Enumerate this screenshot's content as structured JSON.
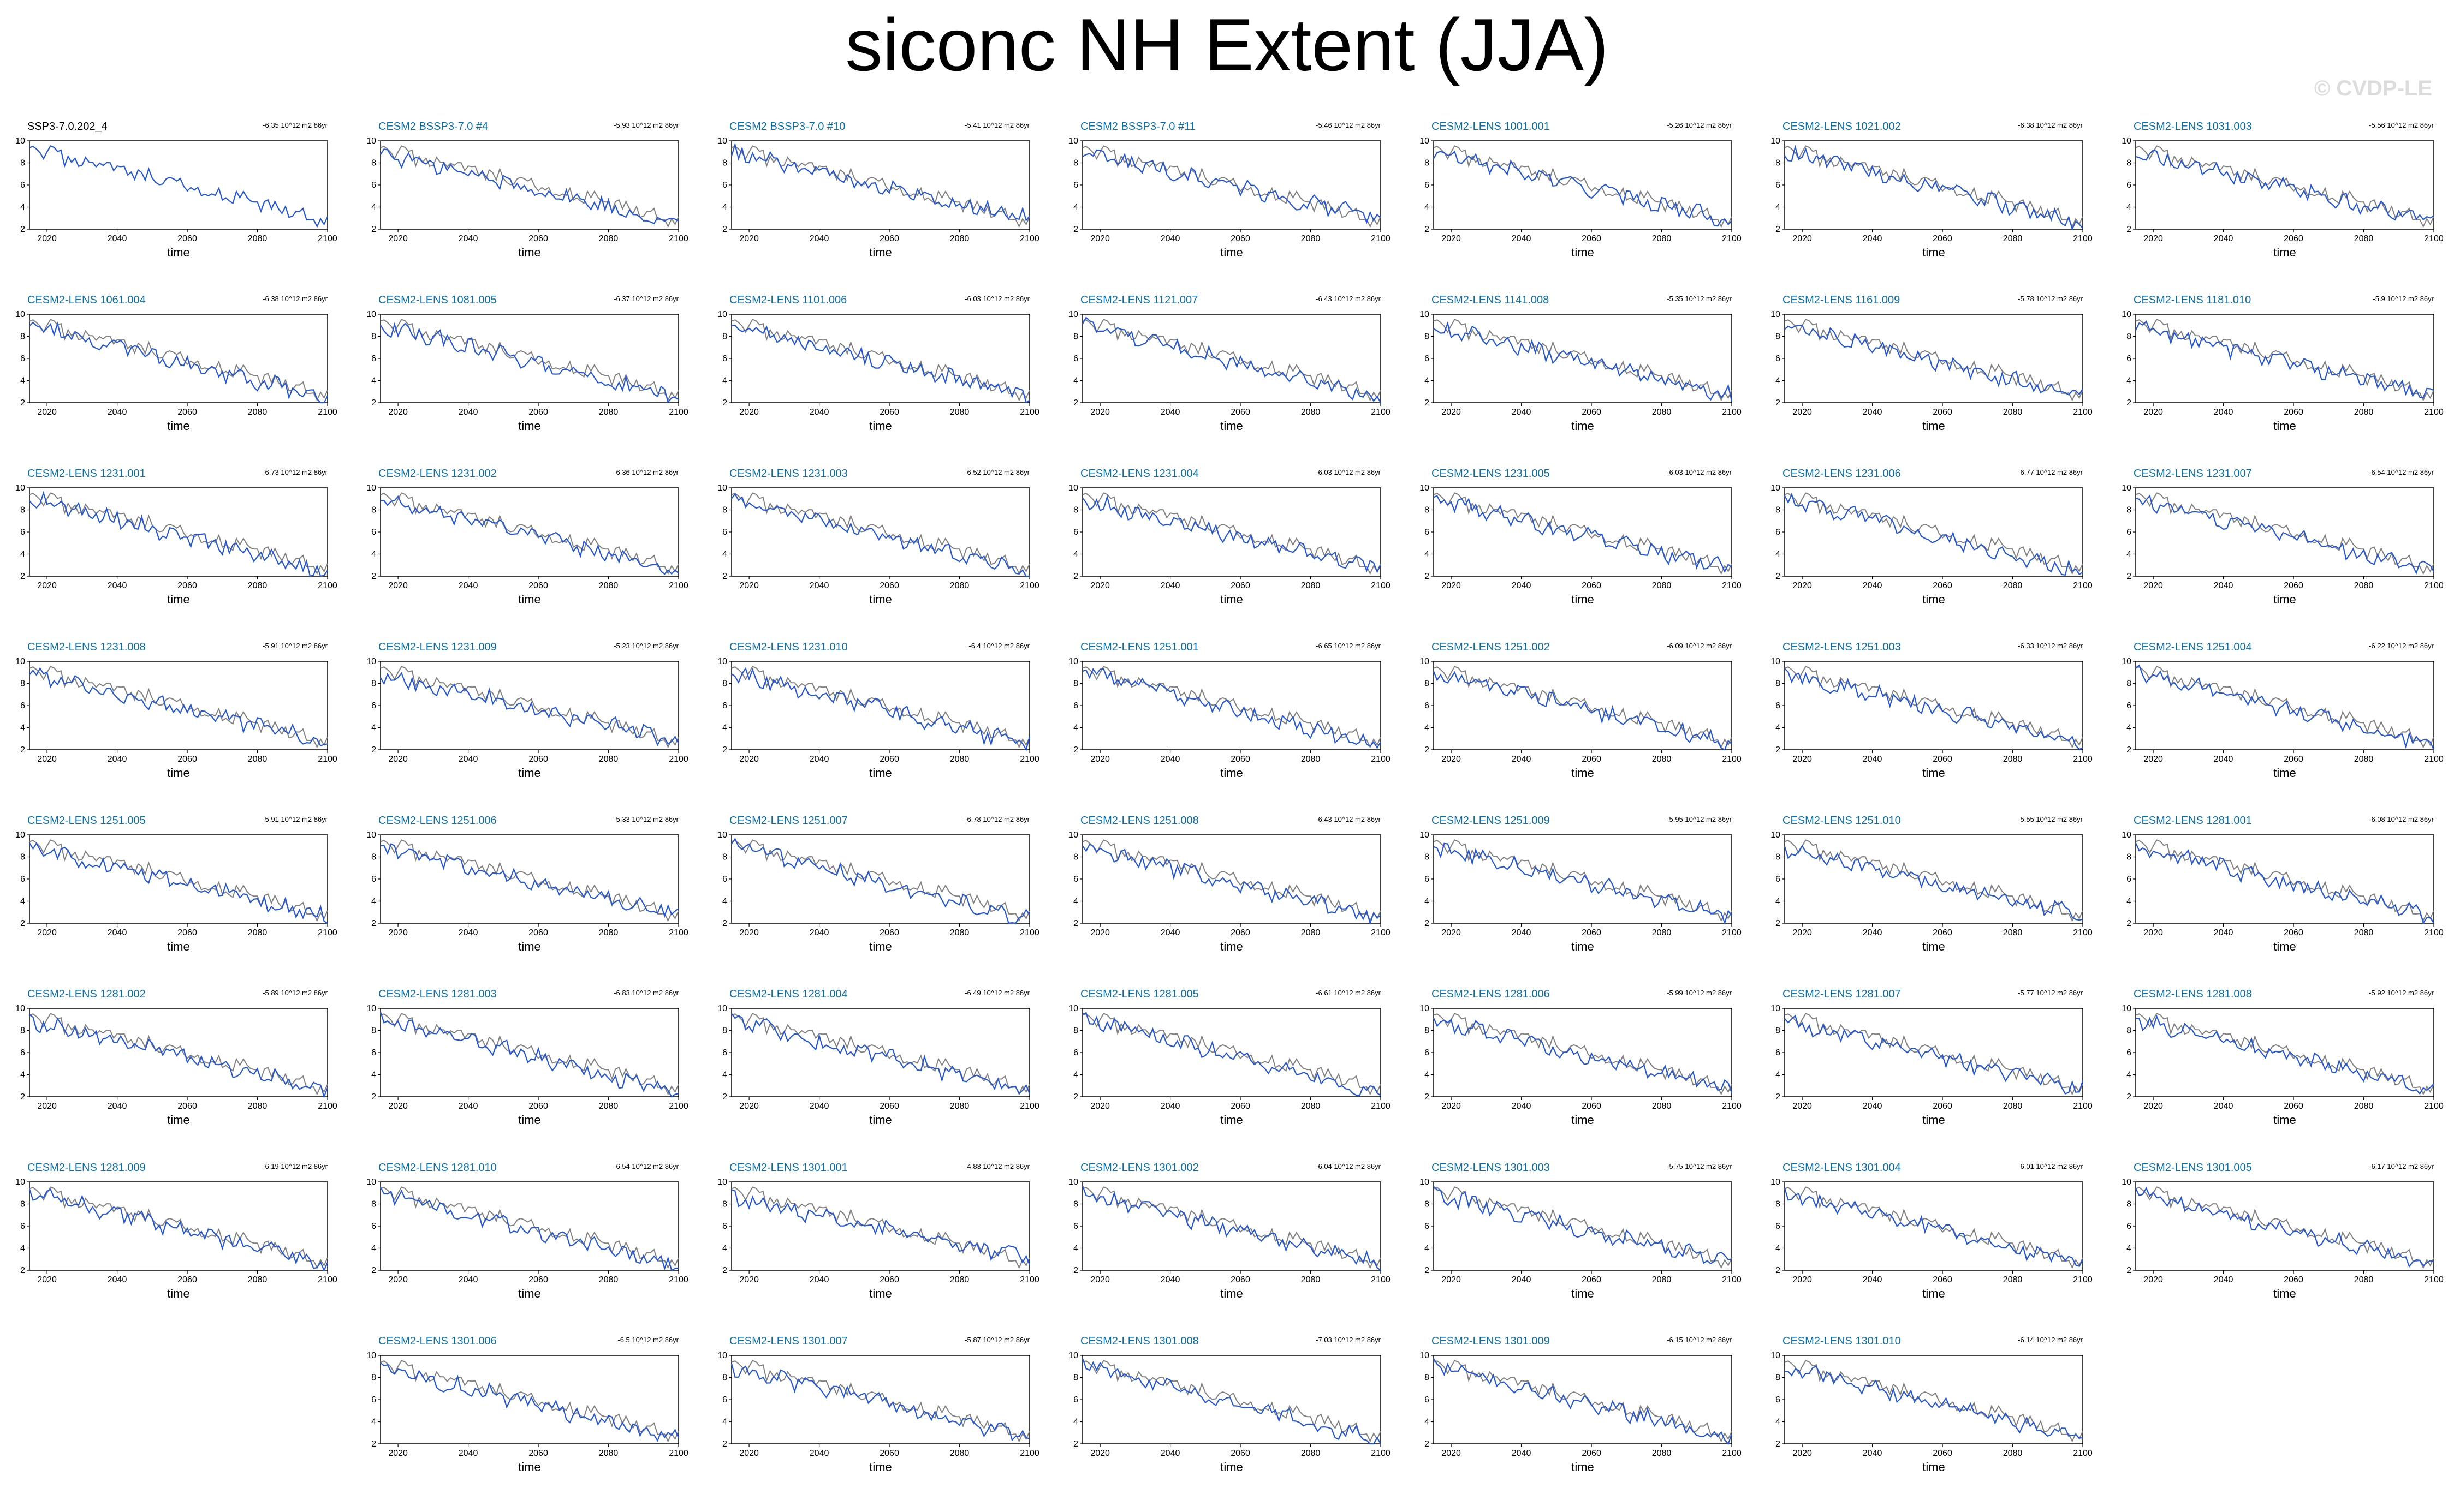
{
  "title": "siconc NH Extent (JJA)",
  "watermark": "© CVDP-LE",
  "colors": {
    "obs": "#000000",
    "panel_title": "#0a6fa8",
    "model": "#2455d6",
    "observed": "#808080"
  },
  "chart_data": {
    "type": "line",
    "xlabel": "time",
    "xlim": [
      2015,
      2100
    ],
    "ylim": [
      2,
      10
    ],
    "xticks": [
      2020,
      2040,
      2060,
      2080,
      2100
    ],
    "yticks": [
      2,
      4,
      6,
      8,
      10
    ],
    "trend_unit": "10^12 m2 86yr",
    "panels": [
      {
        "name": "SSP3-7.0.202_4",
        "trend": "-6.35",
        "start": 9.2,
        "end": 2.7,
        "obs": true
      },
      {
        "name": "CESM2 BSSP3-7.0 #4",
        "trend": "-5.93",
        "start": 8.9,
        "end": 2.5
      },
      {
        "name": "CESM2 BSSP3-7.0 #10",
        "trend": "-5.41",
        "start": 8.9,
        "end": 3.0
      },
      {
        "name": "CESM2 BSSP3-7.0 #11",
        "trend": "-5.46",
        "start": 9.0,
        "end": 2.9
      },
      {
        "name": "CESM2-LENS 1001.001",
        "trend": "-5.26",
        "start": 8.9,
        "end": 2.8
      },
      {
        "name": "CESM2-LENS 1021.002",
        "trend": "-6.38",
        "start": 9.1,
        "end": 2.4
      },
      {
        "name": "CESM2-LENS 1031.003",
        "trend": "-5.56",
        "start": 8.9,
        "end": 2.6
      },
      {
        "name": "CESM2-LENS 1061.004",
        "trend": "-6.38",
        "start": 9.1,
        "end": 2.4
      },
      {
        "name": "CESM2-LENS 1081.005",
        "trend": "-6.37",
        "start": 9.0,
        "end": 2.4
      },
      {
        "name": "CESM2-LENS 1101.006",
        "trend": "-6.03",
        "start": 8.9,
        "end": 2.6
      },
      {
        "name": "CESM2-LENS 1121.007",
        "trend": "-6.43",
        "start": 9.1,
        "end": 2.4
      },
      {
        "name": "CESM2-LENS 1141.008",
        "trend": "-5.35",
        "start": 8.8,
        "end": 2.7
      },
      {
        "name": "CESM2-LENS 1161.009",
        "trend": "-5.78",
        "start": 8.9,
        "end": 2.6
      },
      {
        "name": "CESM2-LENS 1181.010",
        "trend": "-5.9",
        "start": 8.9,
        "end": 2.6
      },
      {
        "name": "CESM2-LENS 1231.001",
        "trend": "-6.73",
        "start": 9.1,
        "end": 2.3
      },
      {
        "name": "CESM2-LENS 1231.002",
        "trend": "-6.36",
        "start": 9.0,
        "end": 2.4
      },
      {
        "name": "CESM2-LENS 1231.003",
        "trend": "-6.52",
        "start": 9.0,
        "end": 2.4
      },
      {
        "name": "CESM2-LENS 1231.004",
        "trend": "-6.03",
        "start": 8.9,
        "end": 2.6
      },
      {
        "name": "CESM2-LENS 1231.005",
        "trend": "-6.03",
        "start": 8.9,
        "end": 2.6
      },
      {
        "name": "CESM2-LENS 1231.006",
        "trend": "-6.77",
        "start": 9.1,
        "end": 2.3
      },
      {
        "name": "CESM2-LENS 1231.007",
        "trend": "-6.54",
        "start": 9.0,
        "end": 2.4
      },
      {
        "name": "CESM2-LENS 1231.008",
        "trend": "-5.91",
        "start": 8.9,
        "end": 2.6
      },
      {
        "name": "CESM2-LENS 1231.009",
        "trend": "-5.23",
        "start": 8.7,
        "end": 2.8
      },
      {
        "name": "CESM2-LENS 1231.010",
        "trend": "-6.4",
        "start": 9.0,
        "end": 2.4
      },
      {
        "name": "CESM2-LENS 1251.001",
        "trend": "-6.65",
        "start": 9.1,
        "end": 2.3
      },
      {
        "name": "CESM2-LENS 1251.002",
        "trend": "-6.09",
        "start": 8.9,
        "end": 2.5
      },
      {
        "name": "CESM2-LENS 1251.003",
        "trend": "-6.33",
        "start": 9.0,
        "end": 2.5
      },
      {
        "name": "CESM2-LENS 1251.004",
        "trend": "-6.22",
        "start": 9.0,
        "end": 2.5
      },
      {
        "name": "CESM2-LENS 1251.005",
        "trend": "-5.91",
        "start": 8.9,
        "end": 2.6
      },
      {
        "name": "CESM2-LENS 1251.006",
        "trend": "-5.33",
        "start": 8.8,
        "end": 2.8
      },
      {
        "name": "CESM2-LENS 1251.007",
        "trend": "-6.78",
        "start": 9.1,
        "end": 2.3
      },
      {
        "name": "CESM2-LENS 1251.008",
        "trend": "-6.43",
        "start": 9.0,
        "end": 2.4
      },
      {
        "name": "CESM2-LENS 1251.009",
        "trend": "-5.95",
        "start": 8.9,
        "end": 2.6
      },
      {
        "name": "CESM2-LENS 1251.010",
        "trend": "-5.55",
        "start": 8.8,
        "end": 2.7
      },
      {
        "name": "CESM2-LENS 1281.001",
        "trend": "-6.08",
        "start": 8.9,
        "end": 2.5
      },
      {
        "name": "CESM2-LENS 1281.002",
        "trend": "-5.89",
        "start": 8.9,
        "end": 2.6
      },
      {
        "name": "CESM2-LENS 1281.003",
        "trend": "-6.83",
        "start": 9.1,
        "end": 2.3
      },
      {
        "name": "CESM2-LENS 1281.004",
        "trend": "-6.49",
        "start": 9.0,
        "end": 2.4
      },
      {
        "name": "CESM2-LENS 1281.005",
        "trend": "-6.61",
        "start": 9.1,
        "end": 2.3
      },
      {
        "name": "CESM2-LENS 1281.006",
        "trend": "-5.99",
        "start": 8.9,
        "end": 2.6
      },
      {
        "name": "CESM2-LENS 1281.007",
        "trend": "-5.77",
        "start": 8.9,
        "end": 2.6
      },
      {
        "name": "CESM2-LENS 1281.008",
        "trend": "-5.92",
        "start": 8.9,
        "end": 2.6
      },
      {
        "name": "CESM2-LENS 1281.009",
        "trend": "-6.19",
        "start": 9.0,
        "end": 2.5
      },
      {
        "name": "CESM2-LENS 1281.010",
        "trend": "-6.54",
        "start": 9.0,
        "end": 2.4
      },
      {
        "name": "CESM2-LENS 1301.001",
        "trend": "-4.83",
        "start": 8.6,
        "end": 3.0
      },
      {
        "name": "CESM2-LENS 1301.002",
        "trend": "-6.04",
        "start": 8.9,
        "end": 2.6
      },
      {
        "name": "CESM2-LENS 1301.003",
        "trend": "-5.75",
        "start": 8.9,
        "end": 2.6
      },
      {
        "name": "CESM2-LENS 1301.004",
        "trend": "-6.01",
        "start": 8.9,
        "end": 2.6
      },
      {
        "name": "CESM2-LENS 1301.005",
        "trend": "-6.17",
        "start": 9.0,
        "end": 2.5
      },
      {
        "name": "CESM2-LENS 1301.006",
        "trend": "-6.5",
        "start": 9.0,
        "end": 2.4
      },
      {
        "name": "CESM2-LENS 1301.007",
        "trend": "-5.87",
        "start": 8.9,
        "end": 2.6
      },
      {
        "name": "CESM2-LENS 1301.008",
        "trend": "-7.03",
        "start": 9.2,
        "end": 2.2
      },
      {
        "name": "CESM2-LENS 1301.009",
        "trend": "-6.15",
        "start": 9.0,
        "end": 2.5
      },
      {
        "name": "CESM2-LENS 1301.010",
        "trend": "-6.14",
        "start": 9.0,
        "end": 2.5
      }
    ]
  }
}
